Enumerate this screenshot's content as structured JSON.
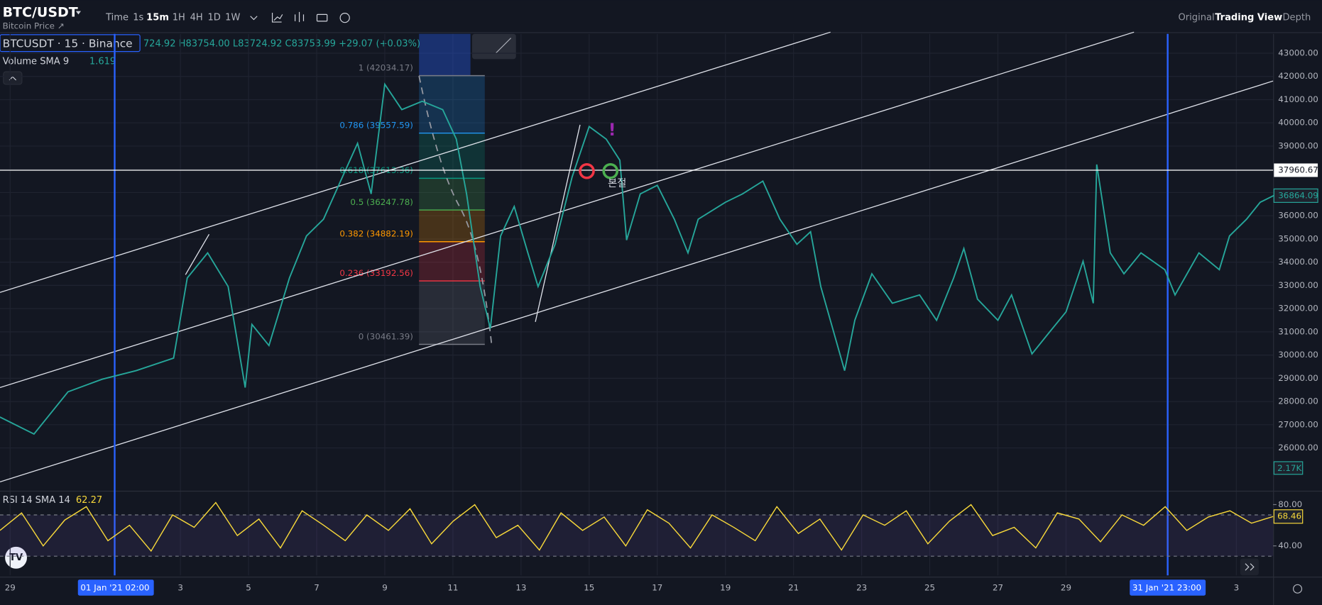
{
  "header": {
    "symbol": "BTC/USDT",
    "subtitle": "Bitcoin Price ↗",
    "timeframes": [
      "Time",
      "1s",
      "15m",
      "1H",
      "4H",
      "1D",
      "1W"
    ],
    "views": [
      "Original",
      "Trading View",
      "Depth"
    ]
  },
  "legend": {
    "symbol": "BTCUSDT · 15 · Binance",
    "ohlc": "724.92 H83754.00 L83724.92 C83753.99 +29.07 (+0.03%)",
    "volume_label": "Volume SMA 9",
    "volume_value": "1.619",
    "rsi_label": "RSI 14 SMA 14",
    "rsi_value": "62.27"
  },
  "price_axis": {
    "ylim": [
      24248,
      43834
    ],
    "ticks": [
      {
        "value": 43000,
        "label": "43000.00"
      },
      {
        "value": 42000,
        "label": "42000.00"
      },
      {
        "value": 41000,
        "label": "41000.00"
      },
      {
        "value": 40000,
        "label": "40000.00"
      },
      {
        "value": 39000,
        "label": "39000.00"
      },
      {
        "value": 38000,
        "label": "38000.00"
      },
      {
        "value": 37000,
        "label": "37000.00"
      },
      {
        "value": 36000,
        "label": "36000.00"
      },
      {
        "value": 35000,
        "label": "35000.00"
      },
      {
        "value": 34000,
        "label": "34000.00"
      },
      {
        "value": 33000,
        "label": "33000.00"
      },
      {
        "value": 32000,
        "label": "32000.00"
      },
      {
        "value": 31000,
        "label": "31000.00"
      },
      {
        "value": 30000,
        "label": "30000.00"
      },
      {
        "value": 29000,
        "label": "29000.00"
      },
      {
        "value": 28000,
        "label": "28000.00"
      },
      {
        "value": 27000,
        "label": "27000.00"
      },
      {
        "value": 26000,
        "label": "26000.00"
      }
    ],
    "crosshair": 37960.67,
    "last_price": 36864.09,
    "volume_last": "2.17K"
  },
  "price_path": {
    "x": [
      -0.3,
      0.7,
      1.7,
      2.7,
      3.7,
      4.8,
      5.2,
      5.8,
      6.4,
      6.9,
      7.1,
      7.6,
      8.2,
      8.7,
      9.2,
      9.7,
      10.2,
      10.6,
      11.0,
      11.5,
      12.1,
      12.7,
      13.1,
      13.4,
      13.8,
      14.1,
      14.4,
      14.8,
      15.2,
      15.5,
      16.0,
      16.5,
      17.0,
      17.5,
      17.9,
      18.1,
      18.5,
      19.0,
      19.5,
      19.9,
      20.2,
      21.0,
      21.5,
      22.1,
      22.6,
      23.1,
      23.5,
      23.8,
      24.5,
      24.8,
      25.3,
      25.9,
      26.7,
      27.2,
      27.7,
      28.0,
      28.4,
      29.0,
      29.4,
      30.0,
      30.5,
      31.0,
      31.5,
      31.8,
      31.9,
      32.3,
      32.7,
      33.2,
      33.9,
      34.2,
      34.9,
      35.5,
      35.8,
      36.3,
      36.7,
      37.1
    ],
    "values": [
      27330,
      26600,
      28420,
      28960,
      29330,
      29870,
      33320,
      34400,
      32950,
      28600,
      31320,
      30410,
      33320,
      35130,
      35850,
      37490,
      39120,
      36940,
      41660,
      40570,
      40930,
      40570,
      39300,
      36940,
      32950,
      31140,
      35130,
      36400,
      34400,
      32950,
      34770,
      37670,
      39840,
      39300,
      38390,
      34950,
      36940,
      37310,
      35850,
      34400,
      35850,
      36580,
      36940,
      37490,
      35850,
      34770,
      35310,
      32950,
      29330,
      31500,
      33500,
      32230,
      32590,
      31500,
      33320,
      34590,
      32410,
      31500,
      32590,
      30050,
      30960,
      31860,
      34040,
      32230,
      38210,
      34400,
      33500,
      34400,
      33680,
      32590,
      34400,
      33680,
      35130,
      35850,
      36580,
      36870
    ]
  },
  "fib": [
    {
      "label": "1 (42034.17)",
      "price": 42034.17,
      "color": "#787b86"
    },
    {
      "label": "0.786 (39557.59)",
      "price": 39557.59,
      "color": "#2196f3"
    },
    {
      "label": "0.618 (37613.36)",
      "price": 37613.36,
      "color": "#089981"
    },
    {
      "label": "0.5 (36247.78)",
      "price": 36247.78,
      "color": "#4caf50"
    },
    {
      "label": "0.382 (34882.19)",
      "price": 34882.19,
      "color": "#ff9800"
    },
    {
      "label": "0.236 (33192.56)",
      "price": 33192.56,
      "color": "#f23645"
    },
    {
      "label": "0 (30461.39)",
      "price": 30461.39,
      "color": "#787b86"
    }
  ],
  "annotations": {
    "note": "본절",
    "alert": "!"
  },
  "date_axis": {
    "labels": [
      "29",
      "01 Jan '21  02:00",
      "3",
      "5",
      "7",
      "9",
      "11",
      "13",
      "15",
      "17",
      "19",
      "21",
      "23",
      "25",
      "27",
      "29",
      "31 Jan '21  23:00",
      "3"
    ],
    "x": [
      0,
      3.08,
      5,
      7,
      9,
      11,
      13,
      15,
      17,
      19,
      21,
      23,
      25,
      27,
      29,
      31,
      33.96,
      36
    ]
  },
  "rsi": {
    "ylim": [
      11.4,
      91.4
    ],
    "ticks": [
      {
        "value": 80,
        "label": "80.00"
      },
      {
        "value": 40,
        "label": "40.00"
      }
    ],
    "band": [
      30,
      70
    ],
    "last": 68.46,
    "values": [
      55,
      72,
      40,
      65,
      78,
      45,
      60,
      35,
      70,
      58,
      82,
      50,
      66,
      38,
      74,
      60,
      45,
      70,
      55,
      76,
      42,
      64,
      80,
      48,
      60,
      36,
      72,
      55,
      68,
      40,
      75,
      62,
      38,
      70,
      58,
      45,
      78,
      52,
      66,
      36,
      70,
      60,
      74,
      42,
      64,
      80,
      50,
      58,
      38,
      72,
      66,
      44,
      70,
      60,
      78,
      55,
      68,
      74,
      62,
      68.46
    ]
  }
}
